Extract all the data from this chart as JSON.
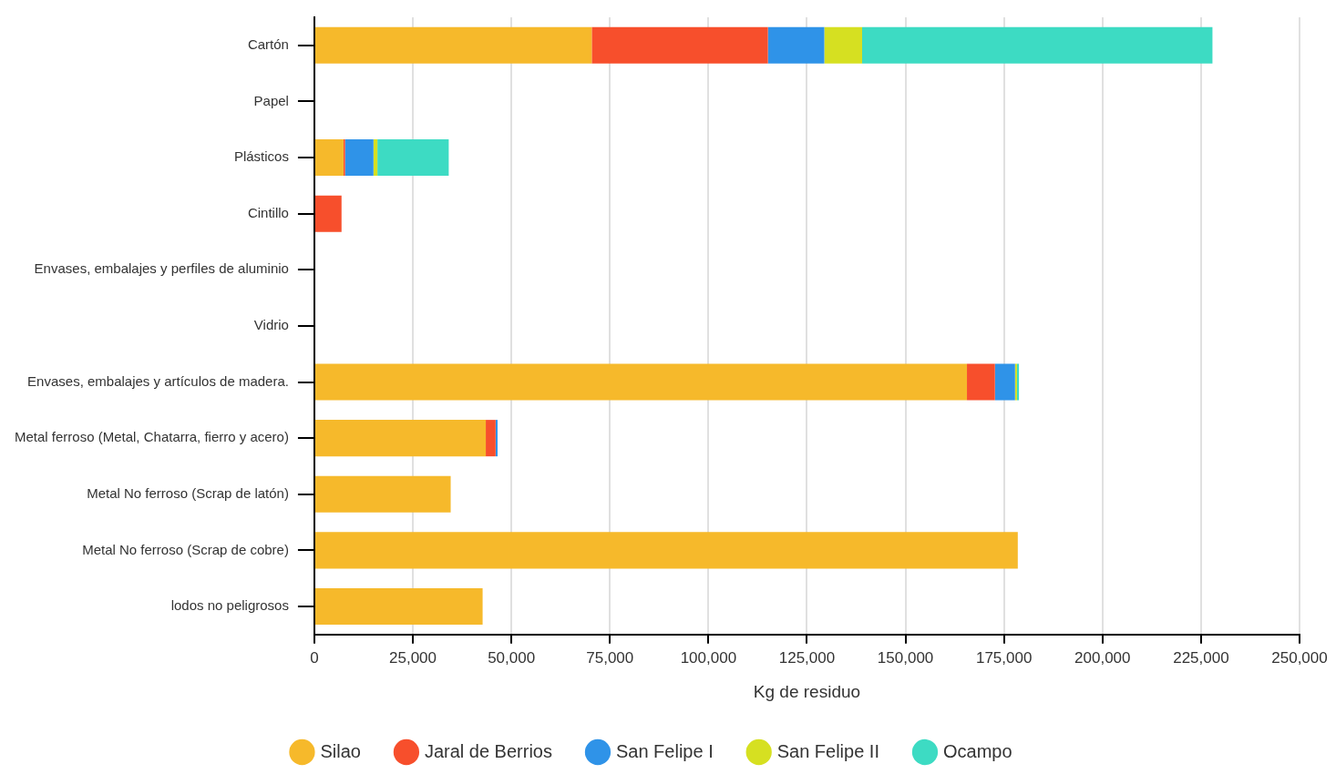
{
  "chart_data": {
    "type": "bar",
    "orientation": "horizontal",
    "stacked": true,
    "categories": [
      "Cartón",
      "Papel",
      "Plásticos",
      "Cintillo",
      "Envases, embalajes y perfiles de aluminio",
      "Vidrio",
      "Envases, embalajes y artículos de madera.",
      "Metal ferroso (Metal, Chatarra, fierro y acero)",
      "Metal No ferroso (Scrap de latón)",
      "Metal No ferroso (Scrap de cobre)",
      "lodos no peligrosos"
    ],
    "series": [
      {
        "name": "Silao",
        "color": "#f6b92b",
        "values": [
          70400,
          0,
          7400,
          0,
          0,
          0,
          165600,
          43500,
          34600,
          178500,
          42700
        ]
      },
      {
        "name": "Jaral de Berrios",
        "color": "#f74f2c",
        "values": [
          44700,
          0,
          400,
          6900,
          0,
          0,
          7100,
          2500,
          0,
          0,
          0
        ]
      },
      {
        "name": "San Felipe I",
        "color": "#2f93e8",
        "values": [
          14300,
          0,
          7200,
          0,
          0,
          0,
          5100,
          500,
          0,
          0,
          0
        ]
      },
      {
        "name": "San Felipe II",
        "color": "#d6e021",
        "values": [
          9600,
          0,
          1000,
          0,
          0,
          0,
          500,
          0,
          0,
          0,
          0
        ]
      },
      {
        "name": "Ocampo",
        "color": "#3ddbc3",
        "values": [
          88900,
          0,
          18100,
          0,
          0,
          0,
          500,
          0,
          0,
          0,
          0
        ]
      }
    ],
    "xlabel": "Kg de residuo",
    "xlim": [
      0,
      250000
    ],
    "xticks": [
      0,
      {
        "value": 25000,
        "label": "25,000"
      },
      {
        "value": 50000,
        "label": "50,000"
      },
      {
        "value": 75000,
        "label": "75,000"
      },
      {
        "value": 100000,
        "label": "100,000"
      },
      {
        "value": 125000,
        "label": "125,000"
      },
      {
        "value": 150000,
        "label": "150,000"
      },
      {
        "value": 175000,
        "label": "175,000"
      },
      {
        "value": 200000,
        "label": "200,000"
      },
      {
        "value": 225000,
        "label": "225,000"
      },
      {
        "value": 250000,
        "label": "250,000"
      }
    ],
    "grid": "x",
    "legend": "bottom"
  }
}
